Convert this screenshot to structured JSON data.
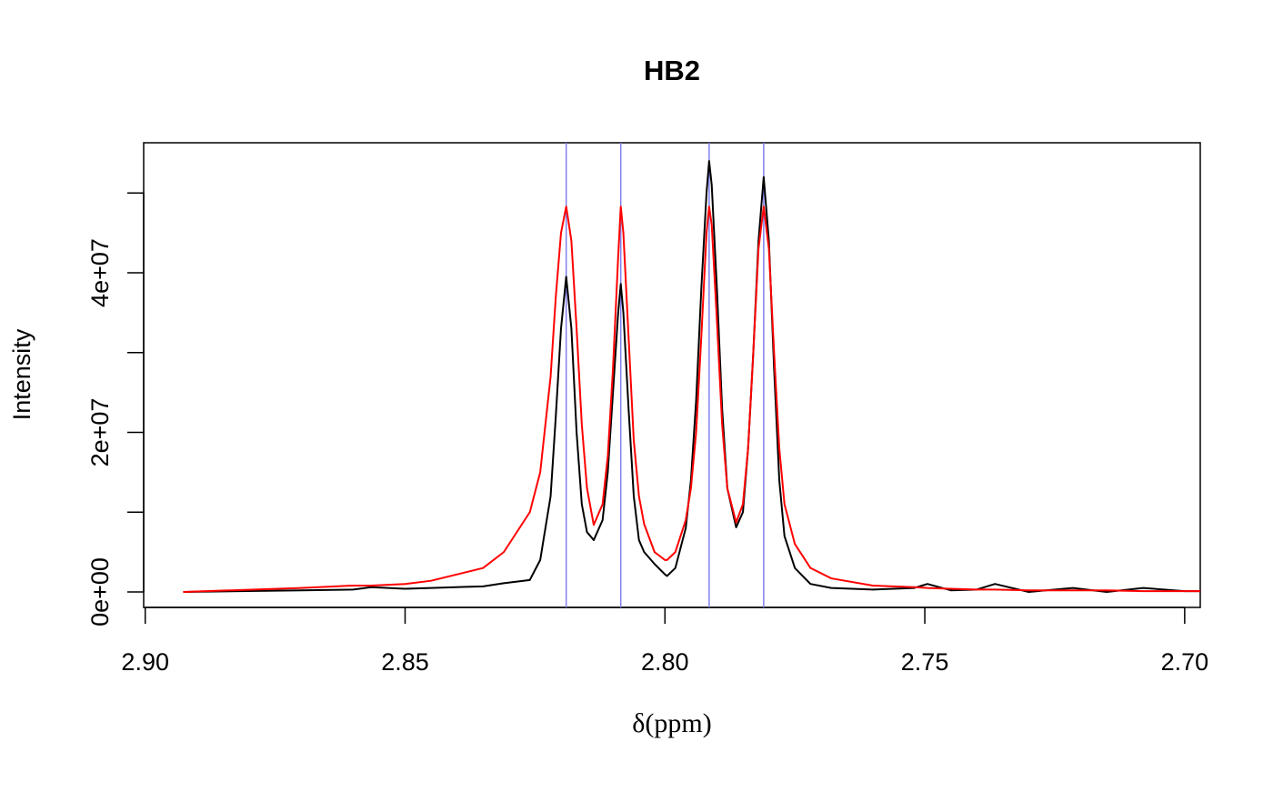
{
  "chart_data": {
    "type": "line",
    "title": "HB2",
    "x_label": "δ(ppm)",
    "y_label": "Intensity",
    "xlim": [
      2.9003,
      2.697
    ],
    "ylim": [
      -1940000,
      56300000
    ],
    "xticks": [
      {
        "value": 2.9,
        "label": "2.90"
      },
      2.85,
      {
        "value": 2.8,
        "label": "2.80"
      },
      2.75,
      {
        "value": 2.7,
        "label": "2.70"
      }
    ],
    "yticks": [
      {
        "value": 0,
        "label": "0e+00"
      },
      {
        "value": 10000000,
        "label": null
      },
      {
        "value": 20000000,
        "label": "2e+07"
      },
      {
        "value": 30000000,
        "label": null
      },
      {
        "value": 40000000,
        "label": "4e+07"
      },
      {
        "value": 50000000,
        "label": null
      }
    ],
    "vlines": [
      2.819,
      2.8085,
      2.7915,
      2.781
    ],
    "vline_color": "#8080ee",
    "x": [
      2.8927,
      2.87,
      2.86,
      2.8565,
      2.85,
      2.845,
      2.835,
      2.831,
      2.826,
      2.824,
      2.822,
      2.821,
      2.82,
      2.819,
      2.818,
      2.817,
      2.816,
      2.815,
      2.8137,
      2.812,
      2.811,
      2.81,
      2.809,
      2.8085,
      2.808,
      2.807,
      2.806,
      2.805,
      2.804,
      2.802,
      2.8,
      2.7996,
      2.798,
      2.796,
      2.795,
      2.794,
      2.793,
      2.792,
      2.7915,
      2.791,
      2.79,
      2.789,
      2.788,
      2.7863,
      2.785,
      2.784,
      2.783,
      2.782,
      2.781,
      2.78,
      2.779,
      2.778,
      2.777,
      2.775,
      2.772,
      2.768,
      2.76,
      2.752,
      2.7495,
      2.745,
      2.74,
      2.7365,
      2.73,
      2.7215,
      2.715,
      2.708,
      2.7,
      2.697
    ],
    "series": [
      {
        "color": "#000000",
        "values": [
          0,
          200000.0,
          300000.0,
          600000.0,
          400000.0,
          500000.0,
          700000.0,
          1100000.0,
          1500000.0,
          4000000.0,
          12000000.0,
          22000000.0,
          33000000.0,
          39500000.0,
          33000000.0,
          20000000.0,
          11000000.0,
          7500000.0,
          6500000.0,
          9000000.0,
          15000000.0,
          25000000.0,
          35000000.0,
          38600000.0,
          35000000.0,
          23000000.0,
          12000000.0,
          6500000.0,
          5000000.0,
          3500000.0,
          2200000.0,
          2000000.0,
          3000000.0,
          8000000.0,
          14000000.0,
          24000000.0,
          38000000.0,
          50000000.0,
          54000000.0,
          51000000.0,
          38000000.0,
          23000000.0,
          13000000.0,
          8100000.0,
          10000000.0,
          18000000.0,
          30000000.0,
          44000000.0,
          52000000.0,
          44000000.0,
          28000000.0,
          14000000.0,
          7000000.0,
          3000000.0,
          1000000.0,
          500000.0,
          300000.0,
          500000.0,
          1000000.0,
          200000.0,
          300000.0,
          1000000.0,
          0,
          500000.0,
          0,
          500000.0,
          100000.0,
          100000.0
        ]
      },
      {
        "color": "#ff0000",
        "values": [
          0,
          500000.0,
          800000.0,
          800000.0,
          1000000.0,
          1400000.0,
          3000000.0,
          5000000.0,
          10000000.0,
          15000000.0,
          27000000.0,
          37000000.0,
          45000000.0,
          48300000.0,
          44000000.0,
          33000000.0,
          21000000.0,
          13000000.0,
          8400000.0,
          11000000.0,
          17000000.0,
          28000000.0,
          42000000.0,
          48300000.0,
          45000000.0,
          32000000.0,
          19000000.0,
          12000000.0,
          8500000.0,
          5000000.0,
          4000000.0,
          4000000.0,
          5000000.0,
          9000000.0,
          13000000.0,
          20000000.0,
          32000000.0,
          45000000.0,
          48300000.0,
          46000000.0,
          34000000.0,
          21000000.0,
          13000000.0,
          8700000.0,
          11000000.0,
          18000000.0,
          30000000.0,
          43000000.0,
          48300000.0,
          43000000.0,
          30000000.0,
          18000000.0,
          11000000.0,
          6000000.0,
          3000000.0,
          1700000.0,
          800000.0,
          600000.0,
          500000.0,
          400000.0,
          300000.0,
          300000.0,
          200000.0,
          200000.0,
          200000.0,
          100000.0,
          100000.0,
          100000.0
        ]
      }
    ]
  }
}
